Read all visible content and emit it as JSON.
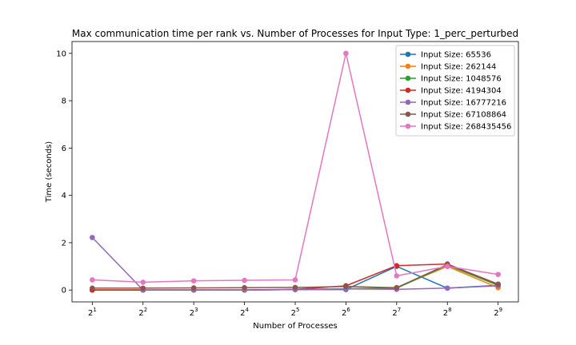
{
  "chart_data": {
    "type": "line",
    "title": "Max communication time per rank vs. Number of Processes for Input Type: 1_perc_perturbed",
    "xlabel": "Number of Processes",
    "ylabel": "Time (seconds)",
    "x_scale": "log2",
    "x": [
      2,
      4,
      8,
      16,
      32,
      64,
      128,
      256,
      512
    ],
    "x_tick_labels": [
      {
        "base": "2",
        "exp": "1"
      },
      {
        "base": "2",
        "exp": "2"
      },
      {
        "base": "2",
        "exp": "3"
      },
      {
        "base": "2",
        "exp": "4"
      },
      {
        "base": "2",
        "exp": "5"
      },
      {
        "base": "2",
        "exp": "6"
      },
      {
        "base": "2",
        "exp": "7"
      },
      {
        "base": "2",
        "exp": "8"
      },
      {
        "base": "2",
        "exp": "9"
      }
    ],
    "ylim": [
      -0.5,
      10.5
    ],
    "y_ticks": [
      0,
      2,
      4,
      6,
      8,
      10
    ],
    "grid": false,
    "legend_position": "top-right",
    "series": [
      {
        "name": "Input Size: 65536",
        "color": "#1f77b4",
        "values": [
          0.0,
          0.0,
          0.0,
          0.0,
          0.02,
          0.02,
          1.0,
          0.08,
          0.2
        ]
      },
      {
        "name": "Input Size: 262144",
        "color": "#ff7f0e",
        "values": [
          0.0,
          0.0,
          0.0,
          0.0,
          0.02,
          0.05,
          0.1,
          1.0,
          0.1
        ]
      },
      {
        "name": "Input Size: 1048576",
        "color": "#2ca02c",
        "values": [
          0.0,
          0.0,
          0.0,
          0.0,
          0.02,
          0.05,
          0.08,
          1.05,
          0.2
        ]
      },
      {
        "name": "Input Size: 4194304",
        "color": "#d62728",
        "values": [
          0.0,
          0.0,
          0.0,
          0.0,
          0.03,
          0.18,
          1.03,
          1.1,
          0.25
        ]
      },
      {
        "name": "Input Size: 16777216",
        "color": "#9467bd",
        "values": [
          2.22,
          0.0,
          0.0,
          0.0,
          0.02,
          0.05,
          0.03,
          0.08,
          0.18
        ]
      },
      {
        "name": "Input Size: 67108864",
        "color": "#8c564b",
        "values": [
          0.08,
          0.08,
          0.09,
          0.1,
          0.11,
          0.15,
          0.1,
          1.08,
          0.25
        ]
      },
      {
        "name": "Input Size: 268435456",
        "color": "#e377c2",
        "values": [
          0.43,
          0.33,
          0.39,
          0.41,
          0.43,
          10.0,
          0.6,
          1.0,
          0.66
        ]
      }
    ]
  }
}
